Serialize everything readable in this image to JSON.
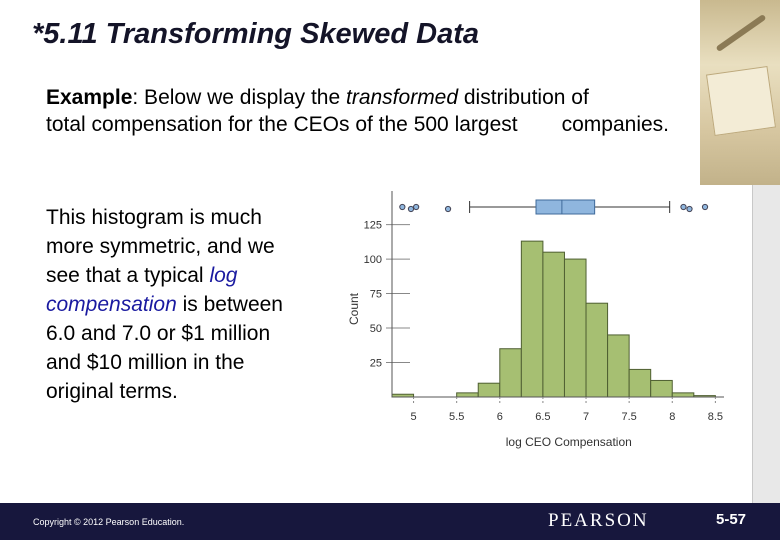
{
  "slide": {
    "title": "*5.11 Transforming Skewed Data",
    "intro": {
      "bold_word": "Example",
      "part1": ": Below we display the ",
      "italic_word": "transformed",
      "part2": " distribution of",
      "line2a": "total compensation for the CEOs of the 500 largest",
      "line2b": "companies."
    },
    "side_text": {
      "line1": "This histogram is much",
      "line2": "more symmetric, and we",
      "line3a": "see that a typical ",
      "line3b": "log",
      "line4a": "compensation",
      "line4b": " is between",
      "line5": "6.0 and 7.0 or $1 million",
      "line6": "and $10 million in the",
      "line7": "original terms."
    },
    "footer": {
      "copyright": "Copyright © 2012 Pearson Education.",
      "brand": "PEARSON",
      "slide_number": "5-57"
    }
  },
  "colors": {
    "bar_fill": "#a6bf72",
    "bar_stroke": "#4f5f32",
    "box_fill": "#8fb6de",
    "box_stroke": "#3f6a9a",
    "footer_bg": "#17173d"
  },
  "chart_data": {
    "type": "bar",
    "subtype": "histogram with boxplot",
    "xlabel": "log CEO Compensation",
    "ylabel": "Count",
    "x_ticks": [
      "5",
      "5.5",
      "6",
      "6.5",
      "7",
      "7.5",
      "8",
      "8.5"
    ],
    "y_ticks": [
      "25",
      "50",
      "75",
      "100",
      "125"
    ],
    "xlim": [
      4.75,
      8.6
    ],
    "ylim": [
      0,
      145
    ],
    "bins": [
      {
        "start": 4.75,
        "end": 5.0,
        "count": 2
      },
      {
        "start": 5.0,
        "end": 5.25,
        "count": 0
      },
      {
        "start": 5.25,
        "end": 5.5,
        "count": 0
      },
      {
        "start": 5.5,
        "end": 5.75,
        "count": 3
      },
      {
        "start": 5.75,
        "end": 6.0,
        "count": 10
      },
      {
        "start": 6.0,
        "end": 6.25,
        "count": 35
      },
      {
        "start": 6.25,
        "end": 6.5,
        "count": 113
      },
      {
        "start": 6.5,
        "end": 6.75,
        "count": 105
      },
      {
        "start": 6.75,
        "end": 7.0,
        "count": 100
      },
      {
        "start": 7.0,
        "end": 7.25,
        "count": 68
      },
      {
        "start": 7.25,
        "end": 7.5,
        "count": 45
      },
      {
        "start": 7.5,
        "end": 7.75,
        "count": 20
      },
      {
        "start": 7.75,
        "end": 8.0,
        "count": 12
      },
      {
        "start": 8.0,
        "end": 8.25,
        "count": 3
      },
      {
        "start": 8.25,
        "end": 8.5,
        "count": 1
      }
    ],
    "boxplot": {
      "whisker_low": 5.65,
      "q1": 6.42,
      "median": 6.72,
      "q3": 7.1,
      "whisker_high": 7.97,
      "outliers": [
        4.87,
        4.97,
        5.03,
        5.4,
        8.13,
        8.2,
        8.38
      ]
    }
  }
}
